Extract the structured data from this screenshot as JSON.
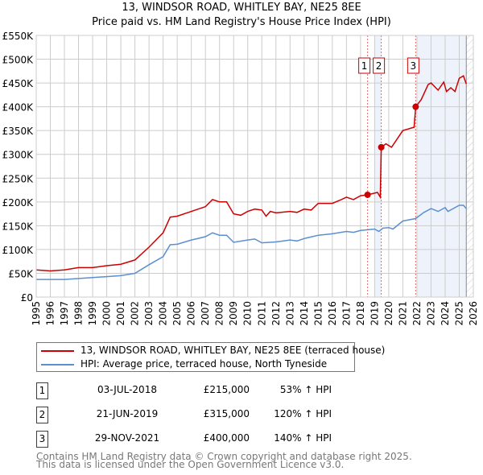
{
  "chart_data": {
    "type": "line",
    "title": "13, WINDSOR ROAD, WHITLEY BAY, NE25 8EE",
    "subtitle": "Price paid vs. HM Land Registry's House Price Index (HPI)",
    "xlim": [
      1995,
      2026
    ],
    "ylim": [
      0,
      550000
    ],
    "y_ticks": [
      0,
      50000,
      100000,
      150000,
      200000,
      250000,
      300000,
      350000,
      400000,
      450000,
      500000,
      550000
    ],
    "y_tick_labels": [
      "£0",
      "£50K",
      "£100K",
      "£150K",
      "£200K",
      "£250K",
      "£300K",
      "£350K",
      "£400K",
      "£450K",
      "£500K",
      "£550K"
    ],
    "x_ticks": [
      1995,
      1996,
      1997,
      1998,
      1999,
      2000,
      2001,
      2002,
      2003,
      2004,
      2005,
      2006,
      2007,
      2008,
      2009,
      2010,
      2011,
      2012,
      2013,
      2014,
      2015,
      2016,
      2017,
      2018,
      2019,
      2020,
      2021,
      2022,
      2023,
      2024,
      2025,
      2026
    ],
    "grid": true,
    "colors": {
      "property": "#cc0000",
      "hpi": "#5b8fd0",
      "shade": "#eef3fb"
    },
    "series": [
      {
        "name": "13, WINDSOR ROAD, WHITLEY BAY, NE25 8EE (terraced house)",
        "x": [
          1995,
          1996,
          1997,
          1998,
          1999,
          2000,
          2001,
          2002,
          2003,
          2004,
          2004.5,
          2005,
          2006,
          2007,
          2007.5,
          2008,
          2008.5,
          2009,
          2009.5,
          2010,
          2010.5,
          2011,
          2011.3,
          2011.6,
          2012,
          2013,
          2013.5,
          2014,
          2014.5,
          2015,
          2016,
          2016.5,
          2017,
          2017.5,
          2018,
          2018.5,
          2019.2,
          2019.4,
          2019.47,
          2019.8,
          2020.2,
          2021,
          2021.8,
          2021.91,
          2022.3,
          2022.8,
          2023,
          2023.5,
          2023.9,
          2024.1,
          2024.4,
          2024.7,
          2025,
          2025.3,
          2025.5
        ],
        "values": [
          57000,
          55000,
          57000,
          62000,
          62000,
          66000,
          69000,
          78000,
          105000,
          135000,
          168000,
          170000,
          180000,
          190000,
          205000,
          200000,
          200000,
          175000,
          172000,
          180000,
          185000,
          183000,
          170000,
          180000,
          177000,
          180000,
          178000,
          185000,
          183000,
          197000,
          197000,
          203000,
          210000,
          205000,
          213000,
          215000,
          220000,
          210000,
          315000,
          322000,
          315000,
          350000,
          357000,
          400000,
          415000,
          447000,
          450000,
          435000,
          452000,
          432000,
          440000,
          432000,
          460000,
          465000,
          448000
        ]
      },
      {
        "name": "HPI: Average price, terraced house, North Tyneside",
        "x": [
          1995,
          1997,
          1999,
          2001,
          2002,
          2003,
          2004,
          2004.5,
          2005,
          2006,
          2007,
          2007.5,
          2008,
          2008.5,
          2009,
          2010,
          2010.5,
          2011,
          2012,
          2013,
          2013.5,
          2014,
          2015,
          2016,
          2017,
          2017.5,
          2018,
          2019,
          2019.3,
          2019.6,
          2020,
          2020.3,
          2021,
          2021.9,
          2022.5,
          2023,
          2023.5,
          2024,
          2024.2,
          2025,
          2025.3,
          2025.5
        ],
        "values": [
          37000,
          37000,
          41000,
          45000,
          50000,
          68000,
          85000,
          110000,
          111000,
          120000,
          127000,
          135000,
          130000,
          130000,
          115000,
          120000,
          122000,
          114000,
          116000,
          120000,
          118000,
          123000,
          130000,
          133000,
          138000,
          136000,
          140000,
          143000,
          138000,
          145000,
          146000,
          143000,
          160000,
          165000,
          178000,
          186000,
          180000,
          188000,
          180000,
          193000,
          193000,
          186000
        ]
      }
    ],
    "sales": [
      {
        "label": "1",
        "x": 2018.5,
        "value": 215000
      },
      {
        "label": "2",
        "x": 2019.47,
        "value": 315000
      },
      {
        "label": "3",
        "x": 2021.91,
        "value": 400000
      }
    ]
  },
  "legend": {
    "property": "13, WINDSOR ROAD, WHITLEY BAY, NE25 8EE (terraced house)",
    "hpi": "HPI: Average price, terraced house, North Tyneside"
  },
  "transactions": [
    {
      "num": "1",
      "date": "03-JUL-2018",
      "price": "£215,000",
      "hpi": "53% ↑ HPI"
    },
    {
      "num": "2",
      "date": "21-JUN-2019",
      "price": "£315,000",
      "hpi": "120% ↑ HPI"
    },
    {
      "num": "3",
      "date": "29-NOV-2021",
      "price": "£400,000",
      "hpi": "140% ↑ HPI"
    }
  ],
  "footer": {
    "line1": "Contains HM Land Registry data © Crown copyright and database right 2025.",
    "line2": "This data is licensed under the Open Government Licence v3.0."
  }
}
